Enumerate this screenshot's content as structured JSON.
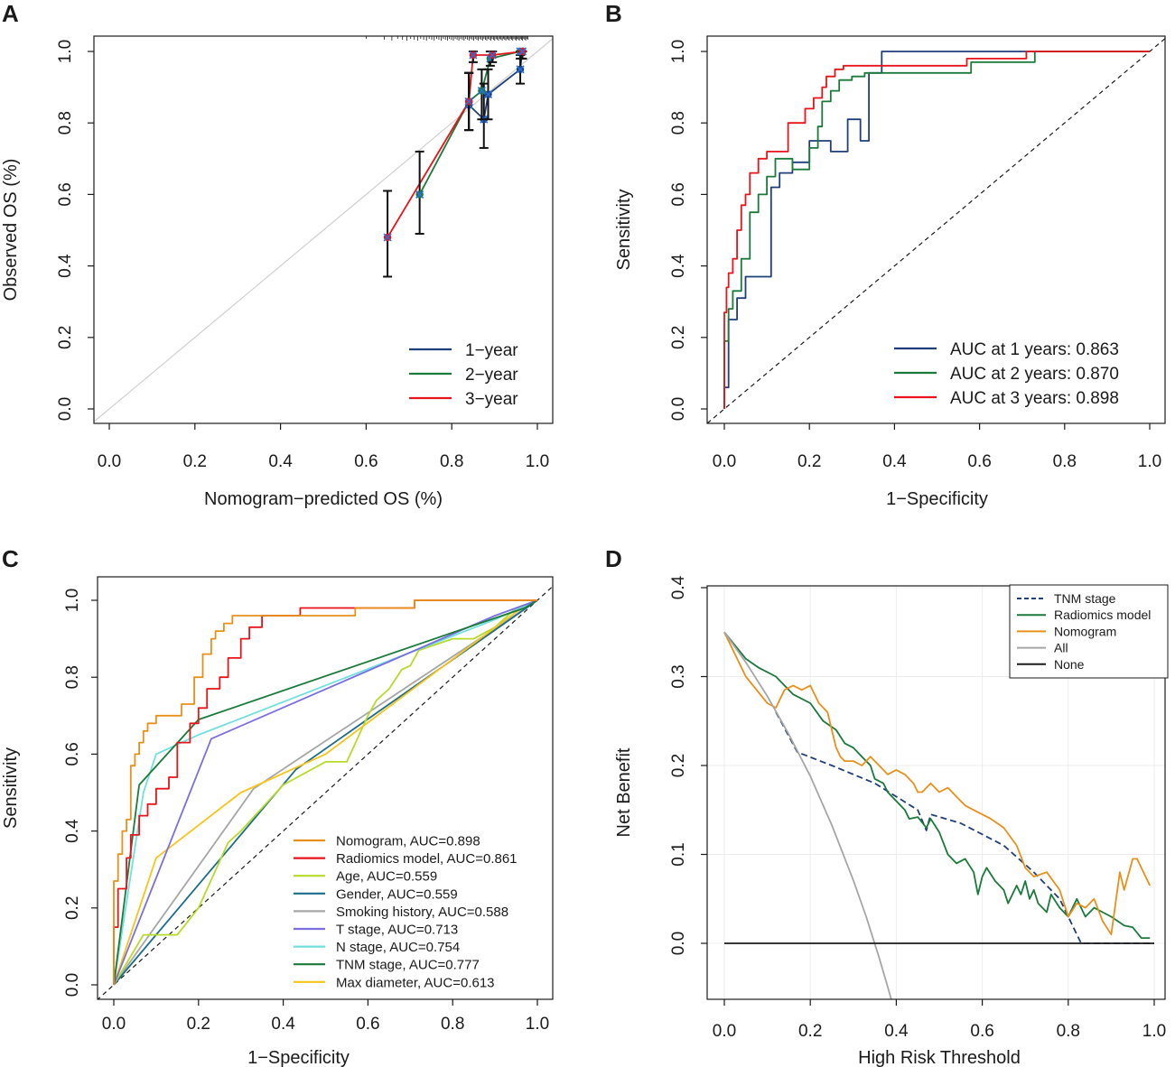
{
  "chart_data": [
    {
      "panel": "A",
      "type": "line",
      "title": "",
      "xlabel": "Nomogram−predicted OS (%)",
      "ylabel": "Observed OS (%)",
      "xlim": [
        0,
        1
      ],
      "ylim": [
        0,
        1
      ],
      "xticks": [
        "0.0",
        "0.2",
        "0.4",
        "0.6",
        "0.8",
        "1.0"
      ],
      "yticks": [
        "0.0",
        "0.2",
        "0.4",
        "0.6",
        "0.8",
        "1.0"
      ],
      "reference_line": "diagonal",
      "legend_position": "bottom-right",
      "series": [
        {
          "name": "1−year",
          "color": "#1f3f7a",
          "x": [
            0.84,
            0.875,
            0.885,
            0.96,
            0.965
          ],
          "y": [
            0.85,
            0.81,
            0.88,
            0.95,
            1.0
          ],
          "err_low": [
            0.78,
            0.73,
            0.81,
            0.91,
            0.98
          ],
          "err_high": [
            0.94,
            0.91,
            0.95,
            0.99,
            1.0
          ]
        },
        {
          "name": "2−year",
          "color": "#1a7a3a",
          "x": [
            0.725,
            0.84,
            0.87,
            0.89,
            0.96
          ],
          "y": [
            0.6,
            0.86,
            0.89,
            0.98,
            1.0
          ],
          "err_low": [
            0.49,
            0.78,
            0.81,
            0.96,
            0.98
          ],
          "err_high": [
            0.72,
            0.94,
            0.95,
            1.0,
            1.0
          ]
        },
        {
          "name": "3−year",
          "color": "#e8141a",
          "x": [
            0.65,
            0.84,
            0.85,
            0.895,
            0.965
          ],
          "y": [
            0.48,
            0.86,
            0.99,
            0.99,
            1.0
          ],
          "err_low": [
            0.37,
            0.78,
            0.97,
            0.97,
            0.98
          ],
          "err_high": [
            0.61,
            0.94,
            1.0,
            1.0,
            1.0
          ]
        }
      ]
    },
    {
      "panel": "B",
      "type": "line",
      "title": "",
      "xlabel": "1−Specificity",
      "ylabel": "Sensitivity",
      "xlim": [
        0,
        1
      ],
      "ylim": [
        0,
        1
      ],
      "xticks": [
        "0.0",
        "0.2",
        "0.4",
        "0.6",
        "0.8",
        "1.0"
      ],
      "yticks": [
        "0.0",
        "0.2",
        "0.4",
        "0.6",
        "0.8",
        "1.0"
      ],
      "reference_line": "dashed-diagonal",
      "legend_position": "bottom-right",
      "series": [
        {
          "name": "AUC at 1 years: 0.863",
          "color": "#1f3f7a",
          "x": [
            0,
            0,
            0.01,
            0.01,
            0.03,
            0.03,
            0.05,
            0.05,
            0.11,
            0.11,
            0.13,
            0.13,
            0.16,
            0.16,
            0.2,
            0.2,
            0.25,
            0.25,
            0.29,
            0.29,
            0.32,
            0.32,
            0.34,
            0.34,
            0.37,
            0.37,
            0.72,
            1.0
          ],
          "y": [
            0,
            0.06,
            0.06,
            0.25,
            0.25,
            0.31,
            0.31,
            0.37,
            0.37,
            0.62,
            0.62,
            0.66,
            0.66,
            0.69,
            0.69,
            0.75,
            0.75,
            0.72,
            0.72,
            0.81,
            0.81,
            0.75,
            0.75,
            0.94,
            0.94,
            1.0,
            1.0,
            1.0
          ]
        },
        {
          "name": "AUC at 2 years: 0.870",
          "color": "#1a7a3a",
          "x": [
            0,
            0,
            0.01,
            0.01,
            0.02,
            0.02,
            0.04,
            0.04,
            0.06,
            0.06,
            0.08,
            0.08,
            0.1,
            0.1,
            0.12,
            0.12,
            0.16,
            0.16,
            0.2,
            0.2,
            0.22,
            0.22,
            0.23,
            0.23,
            0.25,
            0.25,
            0.27,
            0.27,
            0.3,
            0.3,
            0.33,
            0.33,
            0.58,
            0.58,
            0.73,
            0.73,
            1.0
          ],
          "y": [
            0,
            0.19,
            0.19,
            0.28,
            0.28,
            0.33,
            0.33,
            0.42,
            0.42,
            0.55,
            0.55,
            0.6,
            0.6,
            0.65,
            0.65,
            0.7,
            0.7,
            0.67,
            0.67,
            0.73,
            0.73,
            0.79,
            0.79,
            0.86,
            0.86,
            0.89,
            0.89,
            0.92,
            0.92,
            0.93,
            0.93,
            0.94,
            0.94,
            0.97,
            0.97,
            1.0,
            1.0
          ]
        },
        {
          "name": "AUC at 3 years: 0.898",
          "color": "#e8141a",
          "x": [
            0,
            0,
            0.005,
            0.005,
            0.01,
            0.01,
            0.02,
            0.02,
            0.03,
            0.03,
            0.04,
            0.04,
            0.05,
            0.05,
            0.06,
            0.06,
            0.08,
            0.08,
            0.1,
            0.1,
            0.15,
            0.15,
            0.19,
            0.19,
            0.21,
            0.21,
            0.23,
            0.23,
            0.24,
            0.24,
            0.26,
            0.26,
            0.28,
            0.28,
            0.57,
            0.57,
            0.71,
            0.71,
            1.0
          ],
          "y": [
            0,
            0.27,
            0.27,
            0.34,
            0.34,
            0.38,
            0.38,
            0.42,
            0.42,
            0.5,
            0.5,
            0.57,
            0.57,
            0.6,
            0.6,
            0.66,
            0.66,
            0.7,
            0.7,
            0.72,
            0.72,
            0.8,
            0.8,
            0.84,
            0.84,
            0.87,
            0.87,
            0.9,
            0.9,
            0.93,
            0.93,
            0.95,
            0.95,
            0.96,
            0.96,
            0.98,
            0.98,
            1.0,
            1.0
          ]
        }
      ]
    },
    {
      "panel": "C",
      "type": "line",
      "title": "",
      "xlabel": "1−Specificity",
      "ylabel": "Sensitivity",
      "xlim": [
        0,
        1
      ],
      "ylim": [
        0,
        1
      ],
      "xticks": [
        "0.0",
        "0.2",
        "0.4",
        "0.6",
        "0.8",
        "1.0"
      ],
      "yticks": [
        "0.0",
        "0.2",
        "0.4",
        "0.6",
        "0.8",
        "1.0"
      ],
      "reference_line": "dashed-diagonal",
      "legend_position": "bottom-right",
      "series": [
        {
          "name": "Nomogram, AUC=0.898",
          "color": "#e8901a",
          "x": [
            0,
            0,
            0.01,
            0.01,
            0.02,
            0.02,
            0.03,
            0.03,
            0.04,
            0.04,
            0.05,
            0.05,
            0.06,
            0.06,
            0.07,
            0.07,
            0.08,
            0.08,
            0.1,
            0.1,
            0.16,
            0.16,
            0.19,
            0.19,
            0.21,
            0.21,
            0.23,
            0.23,
            0.24,
            0.24,
            0.26,
            0.26,
            0.28,
            0.28,
            0.57,
            0.57,
            0.71,
            0.71,
            1.0
          ],
          "y": [
            0,
            0.27,
            0.27,
            0.34,
            0.34,
            0.4,
            0.4,
            0.43,
            0.43,
            0.57,
            0.57,
            0.6,
            0.6,
            0.63,
            0.63,
            0.66,
            0.66,
            0.68,
            0.68,
            0.7,
            0.7,
            0.73,
            0.73,
            0.8,
            0.8,
            0.86,
            0.86,
            0.9,
            0.9,
            0.92,
            0.92,
            0.94,
            0.94,
            0.96,
            0.96,
            0.98,
            0.98,
            1.0,
            1.0
          ]
        },
        {
          "name": "Radiomics model, AUC=0.861",
          "color": "#e8141a",
          "x": [
            0,
            0,
            0.01,
            0.01,
            0.03,
            0.03,
            0.04,
            0.04,
            0.06,
            0.06,
            0.08,
            0.08,
            0.1,
            0.1,
            0.13,
            0.13,
            0.15,
            0.15,
            0.18,
            0.18,
            0.2,
            0.2,
            0.22,
            0.22,
            0.25,
            0.25,
            0.27,
            0.27,
            0.3,
            0.3,
            0.32,
            0.32,
            0.35,
            0.35,
            0.44,
            0.44,
            0.71,
            0.71,
            1.0
          ],
          "y": [
            0,
            0.15,
            0.15,
            0.25,
            0.25,
            0.33,
            0.33,
            0.39,
            0.39,
            0.44,
            0.44,
            0.47,
            0.47,
            0.51,
            0.51,
            0.54,
            0.54,
            0.63,
            0.63,
            0.68,
            0.68,
            0.72,
            0.72,
            0.77,
            0.77,
            0.8,
            0.8,
            0.85,
            0.85,
            0.9,
            0.9,
            0.93,
            0.93,
            0.96,
            0.96,
            0.98,
            0.98,
            1.0,
            1.0
          ]
        },
        {
          "name": "Age, AUC=0.559",
          "color": "#b6db28",
          "x": [
            0,
            0.07,
            0.15,
            0.2,
            0.27,
            0.3,
            0.4,
            0.5,
            0.55,
            0.6,
            0.62,
            0.65,
            0.68,
            0.7,
            0.72,
            0.8,
            0.85,
            0.9,
            0.95,
            1.0
          ],
          "y": [
            0,
            0.13,
            0.13,
            0.2,
            0.37,
            0.4,
            0.52,
            0.58,
            0.58,
            0.7,
            0.74,
            0.77,
            0.82,
            0.83,
            0.87,
            0.9,
            0.9,
            0.93,
            0.98,
            1.0
          ]
        },
        {
          "name": "Gender, AUC=0.559",
          "color": "#1c6d8c",
          "x": [
            0,
            0.43,
            1.0
          ],
          "y": [
            0,
            0.56,
            1.0
          ]
        },
        {
          "name": "Smoking history, AUC=0.588",
          "color": "#a6a6a6",
          "x": [
            0,
            0.33,
            1.0
          ],
          "y": [
            0,
            0.51,
            1.0
          ]
        },
        {
          "name": "T stage, AUC=0.713",
          "color": "#7a6ee0",
          "x": [
            0,
            0.23,
            0.9,
            1.0
          ],
          "y": [
            0,
            0.64,
            0.96,
            1.0
          ]
        },
        {
          "name": "N stage, AUC=0.754",
          "color": "#70e0dc",
          "x": [
            0,
            0.07,
            0.1,
            0.2,
            0.9,
            1.0
          ],
          "y": [
            0,
            0.5,
            0.6,
            0.65,
            0.95,
            1.0
          ]
        },
        {
          "name": "TNM stage, AUC=0.777",
          "color": "#1a7a3a",
          "x": [
            0,
            0.06,
            0.2,
            0.97,
            1.0
          ],
          "y": [
            0,
            0.52,
            0.69,
            0.98,
            1.0
          ]
        },
        {
          "name": "Max diameter, AUC=0.613",
          "color": "#f5c51a",
          "x": [
            0,
            0.1,
            0.3,
            0.5,
            0.95,
            1.0
          ],
          "y": [
            0,
            0.33,
            0.5,
            0.6,
            0.97,
            1.0
          ]
        }
      ]
    },
    {
      "panel": "D",
      "type": "line",
      "title": "",
      "xlabel": "High Risk Threshold",
      "ylabel": "Net Benefit",
      "xlim": [
        0,
        1
      ],
      "ylim": [
        -0.07,
        0.4
      ],
      "xticks": [
        "0.0",
        "0.2",
        "0.4",
        "0.6",
        "0.8",
        "1.0"
      ],
      "yticks": [
        "0.0",
        "0.1",
        "0.2",
        "0.3",
        "0.4"
      ],
      "grid": true,
      "legend_position": "top-right",
      "series": [
        {
          "name": "TNM stage",
          "color": "#1f3f7a",
          "dashed": true,
          "x": [
            0.12,
            0.17,
            0.25,
            0.35,
            0.45,
            0.47,
            0.48,
            0.55,
            0.65,
            0.72,
            0.78,
            0.8,
            0.82,
            0.83,
            1.0
          ],
          "y": [
            0.26,
            0.215,
            0.2,
            0.18,
            0.15,
            0.127,
            0.145,
            0.135,
            0.11,
            0.08,
            0.05,
            0.03,
            0.01,
            0.0,
            0.0
          ]
        },
        {
          "name": "Radiomics model",
          "color": "#1a7a3a",
          "x": [
            0,
            0.05,
            0.08,
            0.1,
            0.12,
            0.14,
            0.16,
            0.2,
            0.23,
            0.26,
            0.28,
            0.3,
            0.32,
            0.34,
            0.35,
            0.37,
            0.38,
            0.4,
            0.42,
            0.43,
            0.45,
            0.47,
            0.48,
            0.5,
            0.52,
            0.54,
            0.56,
            0.58,
            0.59,
            0.6,
            0.61,
            0.63,
            0.65,
            0.66,
            0.68,
            0.69,
            0.7,
            0.71,
            0.72,
            0.73,
            0.75,
            0.76,
            0.78,
            0.8,
            0.82,
            0.84,
            0.86,
            0.88,
            0.9,
            0.93,
            0.95,
            0.97,
            0.99
          ],
          "y": [
            0.35,
            0.32,
            0.31,
            0.305,
            0.3,
            0.29,
            0.28,
            0.27,
            0.25,
            0.24,
            0.225,
            0.22,
            0.21,
            0.2,
            0.185,
            0.18,
            0.17,
            0.16,
            0.15,
            0.14,
            0.142,
            0.13,
            0.14,
            0.125,
            0.1,
            0.09,
            0.095,
            0.08,
            0.055,
            0.075,
            0.085,
            0.07,
            0.06,
            0.045,
            0.065,
            0.055,
            0.07,
            0.05,
            0.06,
            0.045,
            0.035,
            0.055,
            0.04,
            0.03,
            0.05,
            0.03,
            0.04,
            0.035,
            0.03,
            0.02,
            0.018,
            0.006,
            0.006
          ]
        },
        {
          "name": "Nomogram",
          "color": "#e8901a",
          "x": [
            0,
            0.05,
            0.1,
            0.12,
            0.14,
            0.16,
            0.18,
            0.2,
            0.22,
            0.24,
            0.26,
            0.27,
            0.28,
            0.3,
            0.32,
            0.34,
            0.36,
            0.38,
            0.4,
            0.42,
            0.44,
            0.45,
            0.46,
            0.48,
            0.5,
            0.52,
            0.54,
            0.56,
            0.58,
            0.6,
            0.62,
            0.65,
            0.68,
            0.7,
            0.72,
            0.75,
            0.78,
            0.8,
            0.82,
            0.84,
            0.86,
            0.88,
            0.9,
            0.92,
            0.93,
            0.95,
            0.96,
            0.97,
            0.99
          ],
          "y": [
            0.35,
            0.3,
            0.27,
            0.265,
            0.285,
            0.29,
            0.285,
            0.29,
            0.27,
            0.26,
            0.22,
            0.21,
            0.205,
            0.205,
            0.2,
            0.21,
            0.2,
            0.19,
            0.195,
            0.19,
            0.18,
            0.17,
            0.17,
            0.18,
            0.17,
            0.175,
            0.165,
            0.155,
            0.15,
            0.145,
            0.14,
            0.13,
            0.11,
            0.085,
            0.075,
            0.08,
            0.06,
            0.03,
            0.045,
            0.04,
            0.05,
            0.025,
            0.01,
            0.08,
            0.06,
            0.095,
            0.095,
            0.085,
            0.065
          ]
        },
        {
          "name": "All",
          "color": "#a6a6a6",
          "x": [
            0,
            0.05,
            0.1,
            0.15,
            0.2,
            0.25,
            0.3,
            0.33,
            0.36,
            0.38,
            0.395
          ],
          "y": [
            0.35,
            0.316,
            0.278,
            0.235,
            0.188,
            0.133,
            0.071,
            0.03,
            -0.016,
            -0.049,
            -0.074
          ]
        },
        {
          "name": "None",
          "color": "#1a1a1a",
          "x": [
            0,
            1.0
          ],
          "y": [
            0,
            0
          ]
        }
      ]
    }
  ]
}
